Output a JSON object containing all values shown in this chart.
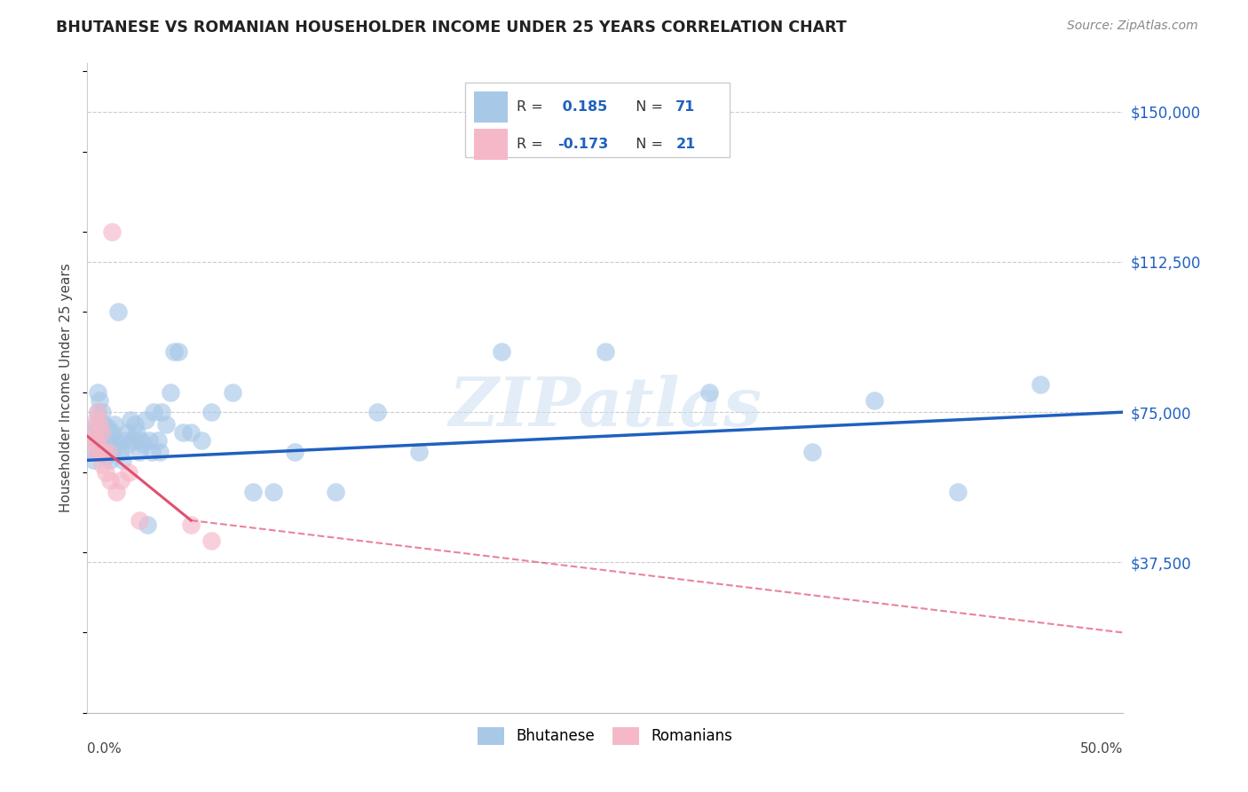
{
  "title": "BHUTANESE VS ROMANIAN HOUSEHOLDER INCOME UNDER 25 YEARS CORRELATION CHART",
  "source": "Source: ZipAtlas.com",
  "ylabel": "Householder Income Under 25 years",
  "yticks": [
    0,
    37500,
    75000,
    112500,
    150000
  ],
  "ytick_labels": [
    "",
    "$37,500",
    "$75,000",
    "$112,500",
    "$150,000"
  ],
  "xmin": 0.0,
  "xmax": 0.5,
  "ymin": 0,
  "ymax": 162000,
  "legend_r_blue": "0.185",
  "legend_n_blue": "71",
  "legend_r_pink": "-0.173",
  "legend_n_pink": "21",
  "blue_color": "#a8c8e8",
  "pink_color": "#f5b8c8",
  "blue_line_color": "#2060c0",
  "pink_line_color": "#e05070",
  "watermark": "ZIPatlas",
  "bhutanese_x": [
    0.002,
    0.003,
    0.003,
    0.004,
    0.004,
    0.005,
    0.005,
    0.005,
    0.006,
    0.006,
    0.006,
    0.007,
    0.007,
    0.007,
    0.008,
    0.008,
    0.008,
    0.009,
    0.009,
    0.01,
    0.01,
    0.011,
    0.011,
    0.012,
    0.012,
    0.013,
    0.013,
    0.014,
    0.015,
    0.016,
    0.017,
    0.018,
    0.019,
    0.02,
    0.021,
    0.022,
    0.023,
    0.024,
    0.025,
    0.026,
    0.027,
    0.028,
    0.029,
    0.03,
    0.031,
    0.032,
    0.034,
    0.035,
    0.036,
    0.038,
    0.04,
    0.042,
    0.044,
    0.046,
    0.05,
    0.055,
    0.06,
    0.07,
    0.08,
    0.09,
    0.1,
    0.12,
    0.14,
    0.16,
    0.2,
    0.25,
    0.3,
    0.35,
    0.38,
    0.42,
    0.46
  ],
  "bhutanese_y": [
    65000,
    63000,
    70000,
    72000,
    68000,
    80000,
    75000,
    65000,
    78000,
    72000,
    68000,
    70000,
    65000,
    75000,
    69000,
    72000,
    67000,
    68000,
    64000,
    67000,
    71000,
    68000,
    63000,
    70000,
    65000,
    72000,
    68000,
    67000,
    100000,
    65000,
    63000,
    68000,
    70000,
    67000,
    73000,
    68000,
    72000,
    70000,
    65000,
    68000,
    67000,
    73000,
    47000,
    68000,
    65000,
    75000,
    68000,
    65000,
    75000,
    72000,
    80000,
    90000,
    90000,
    70000,
    70000,
    68000,
    75000,
    80000,
    55000,
    55000,
    65000,
    55000,
    75000,
    65000,
    90000,
    90000,
    80000,
    65000,
    78000,
    55000,
    82000
  ],
  "romanian_x": [
    0.002,
    0.003,
    0.004,
    0.004,
    0.005,
    0.005,
    0.006,
    0.006,
    0.007,
    0.007,
    0.008,
    0.009,
    0.01,
    0.011,
    0.012,
    0.014,
    0.016,
    0.02,
    0.025,
    0.05,
    0.06
  ],
  "romanian_y": [
    70000,
    68000,
    73000,
    65000,
    75000,
    68000,
    72000,
    65000,
    70000,
    62000,
    65000,
    60000,
    65000,
    58000,
    120000,
    55000,
    58000,
    60000,
    48000,
    47000,
    43000
  ],
  "blue_trend_x0": 0.0,
  "blue_trend_y0": 63000,
  "blue_trend_x1": 0.5,
  "blue_trend_y1": 75000,
  "pink_trend_x0": 0.0,
  "pink_trend_y0": 69000,
  "pink_trend_x1_solid": 0.05,
  "pink_trend_y1_solid": 48000,
  "pink_trend_x1_dash": 0.5,
  "pink_trend_y1_dash": 20000
}
